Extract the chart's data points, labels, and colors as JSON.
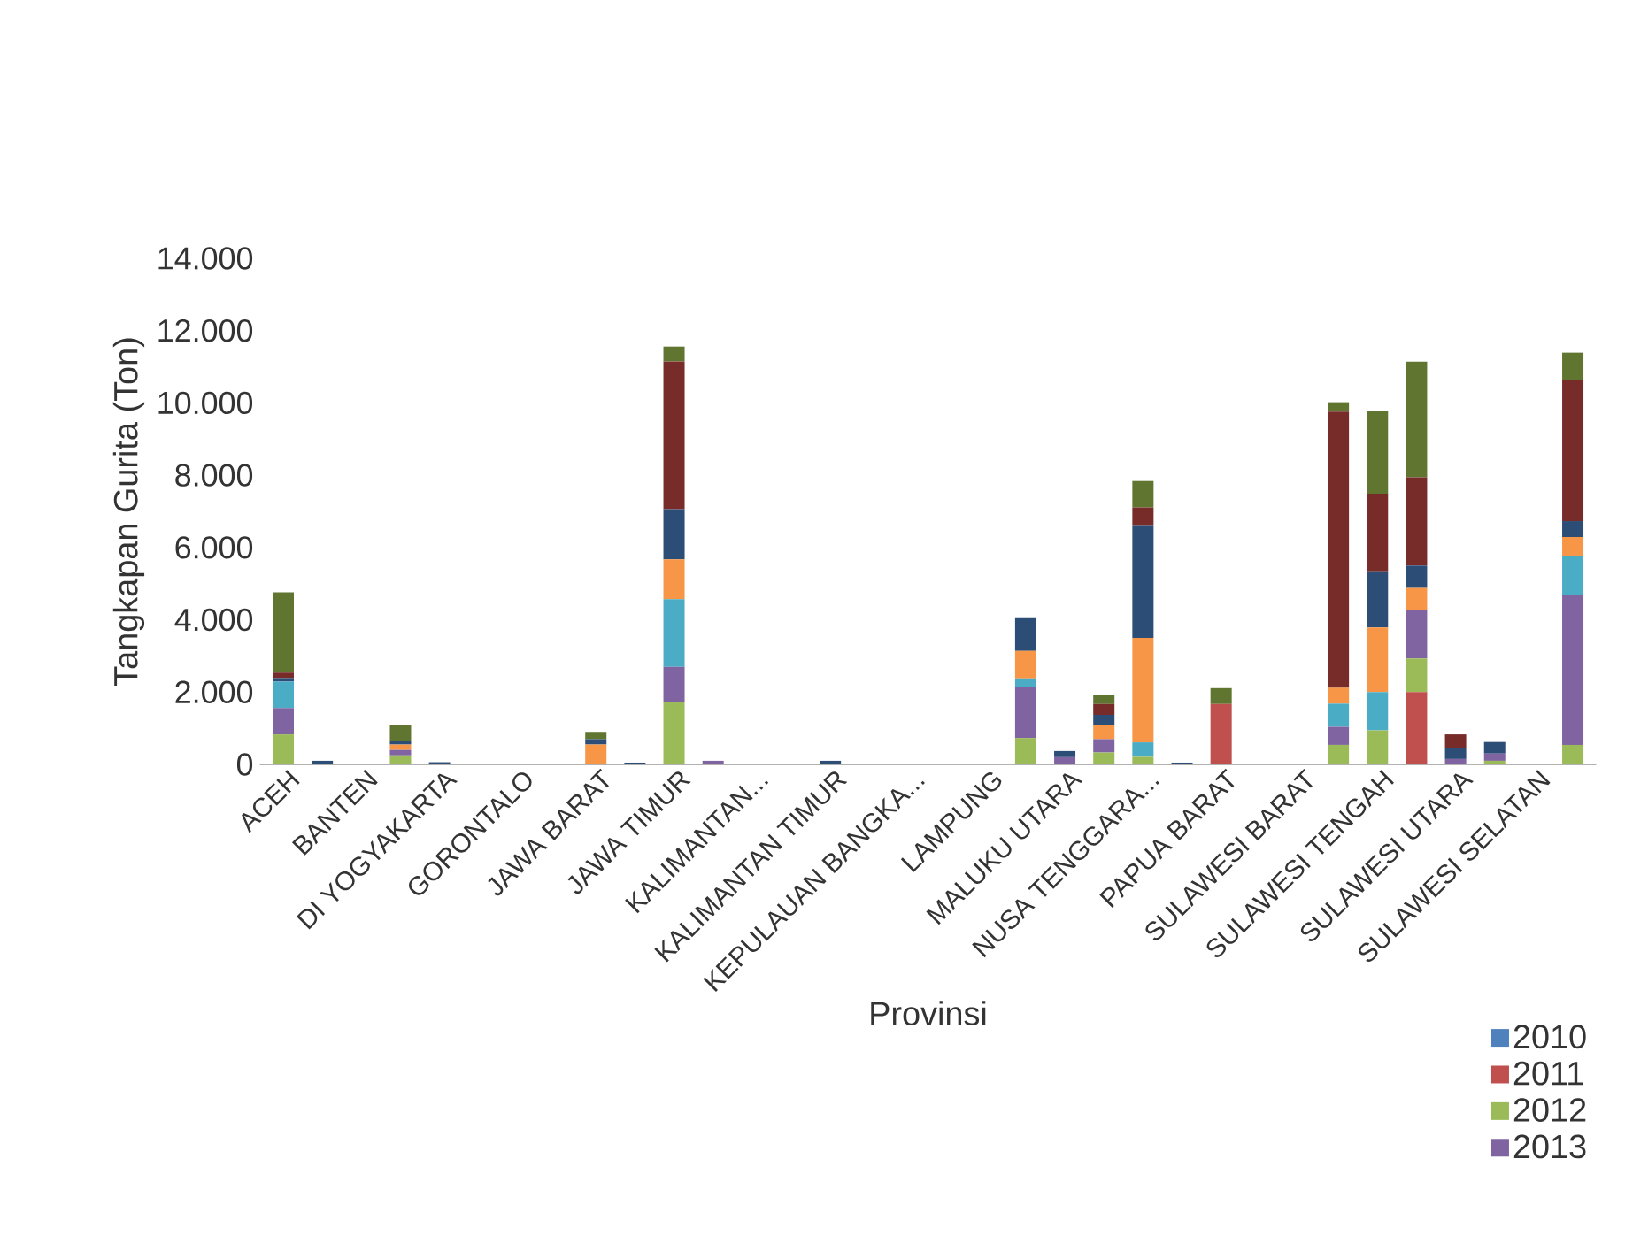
{
  "chart_data": {
    "type": "bar",
    "stacked": true,
    "xlabel": "Provinsi",
    "ylabel": "Tangkapan Gurita (Ton)",
    "categories": [
      "ACEH",
      null,
      "BANTEN",
      null,
      "DI YOGYAKARTA",
      null,
      "GORONTALO",
      null,
      "JAWA BARAT",
      null,
      "JAWA TIMUR",
      null,
      "KALIMANTAN...",
      null,
      "KALIMANTAN TIMUR",
      null,
      "KEPULAUAN BANGKA...",
      null,
      "LAMPUNG",
      null,
      "MALUKU UTARA",
      null,
      "NUSA TENGGARA...",
      null,
      "PAPUA BARAT",
      null,
      "SULAWESI BARAT",
      null,
      "SULAWESI TENGAH",
      null,
      "SULAWESI UTARA",
      null,
      "SULAWESI SELATAN",
      null
    ],
    "ylim": [
      0,
      14000
    ],
    "yticks": [
      0,
      {
        "value": 2000,
        "label": "2.000"
      },
      {
        "value": 4000,
        "label": "4.000"
      },
      {
        "value": 6000,
        "label": "6.000"
      },
      {
        "value": 8000,
        "label": "8.000"
      },
      {
        "value": 10000,
        "label": "10.000"
      },
      {
        "value": 12000,
        "label": "12.000"
      },
      {
        "value": 14000,
        "label": "14.000"
      }
    ],
    "grid": false,
    "legend": "bottom right",
    "series": [
      {
        "name": "2010",
        "color": "#4f81bd",
        "values": [
          0,
          0,
          0,
          0,
          0,
          0,
          0,
          0,
          0,
          0,
          0,
          0,
          0,
          0,
          0,
          0,
          0,
          0,
          0,
          0,
          0,
          0,
          0,
          0,
          0,
          0,
          0,
          0,
          0,
          0,
          0,
          0,
          0,
          0
        ]
      },
      {
        "name": "2011",
        "color": "#c0504d",
        "values": [
          0,
          0,
          0,
          0,
          0,
          0,
          0,
          0,
          0,
          0,
          0,
          0,
          0,
          0,
          0,
          0,
          0,
          0,
          0,
          0,
          0,
          0,
          0,
          0,
          1670,
          0,
          0,
          0,
          0,
          2000,
          0,
          0,
          0,
          0
        ]
      },
      {
        "name": "2012",
        "color": "#9bbb59",
        "values": [
          830,
          0,
          0,
          250,
          0,
          0,
          0,
          0,
          0,
          0,
          1720,
          0,
          0,
          0,
          0,
          0,
          0,
          0,
          0,
          730,
          0,
          330,
          210,
          0,
          0,
          0,
          0,
          540,
          940,
          930,
          0,
          100,
          0,
          540
        ]
      },
      {
        "name": "2013",
        "color": "#8064a2",
        "values": [
          730,
          0,
          0,
          150,
          0,
          0,
          0,
          0,
          0,
          0,
          980,
          100,
          0,
          0,
          0,
          0,
          0,
          0,
          0,
          1400,
          200,
          370,
          0,
          0,
          0,
          0,
          0,
          500,
          0,
          1350,
          150,
          200,
          0,
          4150
        ]
      },
      {
        "color": "#4bacc6",
        "values": [
          730,
          0,
          0,
          0,
          0,
          0,
          0,
          0,
          0,
          0,
          1870,
          0,
          0,
          0,
          0,
          0,
          0,
          0,
          0,
          250,
          0,
          0,
          400,
          0,
          0,
          0,
          0,
          640,
          1060,
          0,
          0,
          0,
          0,
          1060
        ]
      },
      {
        "color": "#f79646",
        "values": [
          0,
          0,
          0,
          150,
          0,
          0,
          0,
          0,
          550,
          0,
          1100,
          0,
          0,
          0,
          0,
          0,
          0,
          0,
          0,
          760,
          0,
          400,
          2890,
          0,
          0,
          0,
          0,
          440,
          1790,
          600,
          0,
          0,
          0,
          540
        ]
      },
      {
        "color": "#2c4d75",
        "values": [
          100,
          100,
          0,
          100,
          60,
          0,
          0,
          0,
          150,
          50,
          1390,
          0,
          0,
          0,
          100,
          0,
          0,
          0,
          0,
          930,
          170,
          270,
          3120,
          50,
          0,
          0,
          0,
          0,
          1550,
          620,
          300,
          320,
          0,
          440
        ]
      },
      {
        "color": "#772c2a",
        "values": [
          150,
          0,
          0,
          0,
          0,
          0,
          0,
          0,
          0,
          0,
          4090,
          0,
          0,
          0,
          0,
          0,
          0,
          0,
          0,
          0,
          0,
          300,
          490,
          0,
          0,
          0,
          0,
          7640,
          2150,
          2440,
          380,
          0,
          0,
          3900
        ]
      },
      {
        "color": "#5f7530",
        "values": [
          2220,
          0,
          0,
          450,
          0,
          0,
          0,
          0,
          200,
          0,
          410,
          0,
          0,
          0,
          0,
          0,
          0,
          0,
          0,
          0,
          0,
          250,
          730,
          0,
          440,
          0,
          0,
          260,
          2280,
          3200,
          0,
          0,
          0,
          760
        ]
      }
    ]
  }
}
